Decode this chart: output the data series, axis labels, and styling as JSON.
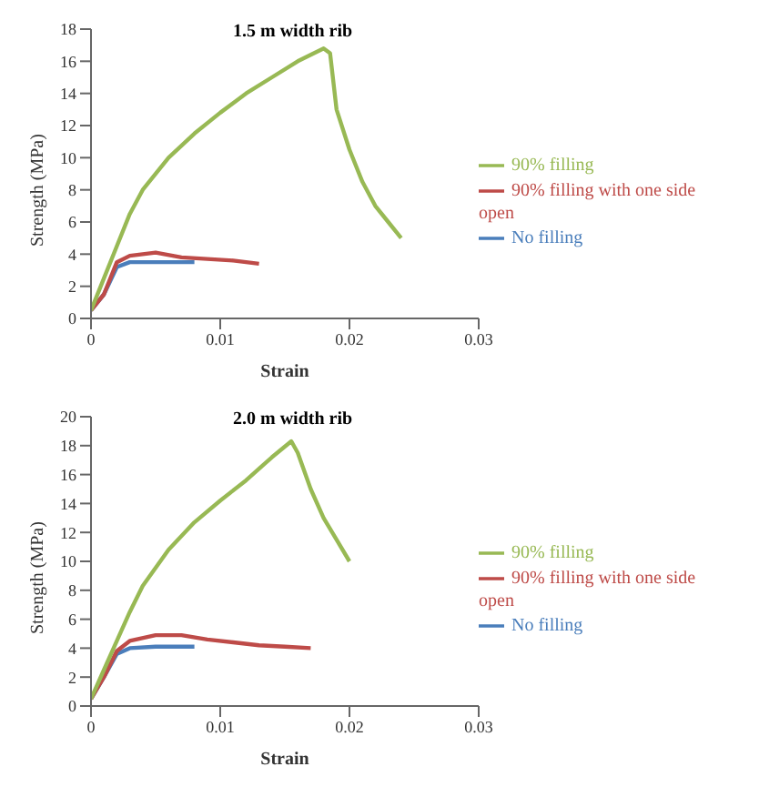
{
  "chart_data": [
    {
      "type": "line",
      "title": "1.5 m width rib",
      "xlabel": "Strain",
      "ylabel": "Strength (MPa)",
      "xlim": [
        0,
        0.03
      ],
      "xticks": [
        0,
        0.01,
        0.02,
        0.03
      ],
      "ylim": [
        0,
        18
      ],
      "yticks": [
        0,
        2,
        4,
        6,
        8,
        10,
        12,
        14,
        16,
        18
      ],
      "legend": "right",
      "marker": "none",
      "grid": false,
      "series": [
        {
          "name": "No filling",
          "color": "#4a7ebb",
          "x": [
            0,
            0.001,
            0.002,
            0.003,
            0.005,
            0.008
          ],
          "values": [
            0.5,
            1.5,
            3.2,
            3.5,
            3.5,
            3.5
          ]
        },
        {
          "name": "90% filling with one side open",
          "color": "#be4b48",
          "x": [
            0,
            0.001,
            0.002,
            0.003,
            0.005,
            0.007,
            0.009,
            0.011,
            0.013
          ],
          "values": [
            0.5,
            1.5,
            3.5,
            3.9,
            4.1,
            3.8,
            3.7,
            3.6,
            3.4
          ]
        },
        {
          "name": "90% filling",
          "color": "#98b954",
          "x": [
            0,
            0.001,
            0.002,
            0.003,
            0.004,
            0.006,
            0.008,
            0.01,
            0.012,
            0.014,
            0.016,
            0.018,
            0.0185,
            0.019,
            0.02,
            0.021,
            0.022,
            0.023,
            0.024
          ],
          "values": [
            0.5,
            2.5,
            4.5,
            6.5,
            8,
            10,
            11.5,
            12.8,
            14,
            15,
            16,
            16.8,
            16.5,
            13,
            10.5,
            8.5,
            7,
            6,
            5
          ]
        }
      ]
    },
    {
      "type": "line",
      "title": "2.0 m width rib",
      "xlabel": "Strain",
      "ylabel": "Strength (MPa)",
      "xlim": [
        0,
        0.03
      ],
      "xticks": [
        0,
        0.01,
        0.02,
        0.03
      ],
      "ylim": [
        0,
        20
      ],
      "yticks": [
        0,
        2,
        4,
        6,
        8,
        10,
        12,
        14,
        16,
        18,
        20
      ],
      "legend": "right",
      "marker": "none",
      "grid": false,
      "series": [
        {
          "name": "No filling",
          "color": "#4a7ebb",
          "x": [
            0,
            0.001,
            0.002,
            0.003,
            0.005,
            0.008
          ],
          "values": [
            0.5,
            2,
            3.6,
            4,
            4.1,
            4.1
          ]
        },
        {
          "name": "90% filling with one side open",
          "color": "#be4b48",
          "x": [
            0,
            0.001,
            0.002,
            0.003,
            0.005,
            0.007,
            0.009,
            0.011,
            0.013,
            0.015,
            0.017
          ],
          "values": [
            0.5,
            2,
            3.8,
            4.5,
            4.9,
            4.9,
            4.6,
            4.4,
            4.2,
            4.1,
            4
          ]
        },
        {
          "name": "90% filling",
          "color": "#98b954",
          "x": [
            0,
            0.001,
            0.002,
            0.003,
            0.004,
            0.006,
            0.008,
            0.01,
            0.012,
            0.014,
            0.0155,
            0.016,
            0.017,
            0.018,
            0.019,
            0.02
          ],
          "values": [
            0.5,
            2.5,
            4.5,
            6.5,
            8.3,
            10.8,
            12.7,
            14.2,
            15.6,
            17.2,
            18.3,
            17.5,
            15,
            13,
            11.5,
            10
          ]
        }
      ]
    }
  ]
}
